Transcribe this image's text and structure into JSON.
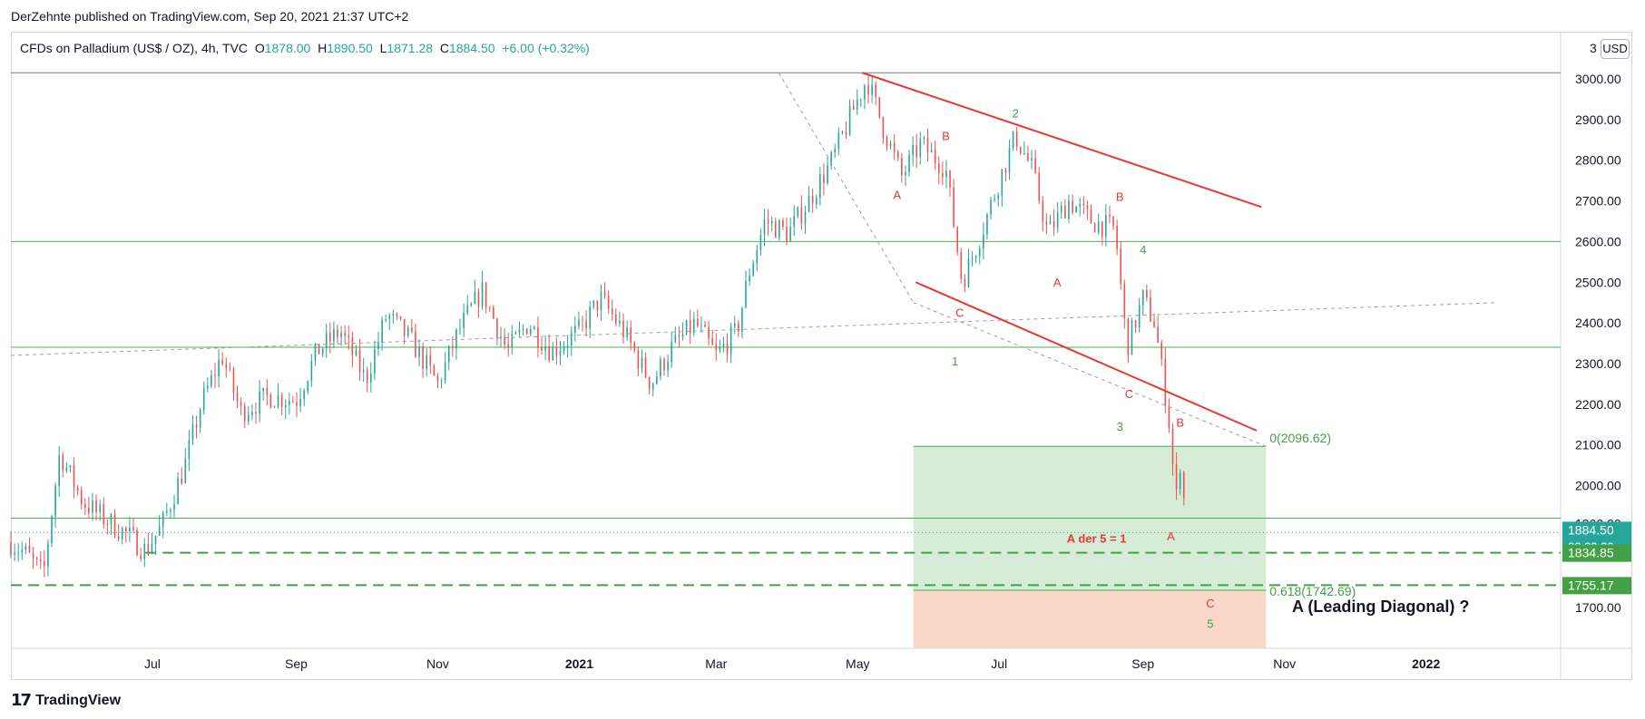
{
  "header": {
    "published_line": "DerZehnte published on TradingView.com, Sep 20, 2021 21:37 UTC+2"
  },
  "legend": {
    "symbol": "CFDs on Palladium (US$ / OZ), 4h, TVC",
    "o_label": "O",
    "o_value": "1878.00",
    "h_label": "H",
    "h_value": "1890.50",
    "l_label": "L",
    "l_value": "1871.28",
    "c_label": "C",
    "c_value": "1884.50",
    "change": "+6.00 (+0.32%)"
  },
  "toolbar": {
    "currency_prefix": "3",
    "currency_button": "USD"
  },
  "footer": {
    "brand": "TradingView",
    "brand_mark": "17"
  },
  "chart_data": {
    "type": "candlestick",
    "symbol": "CFDs on Palladium (US$ / OZ)",
    "interval": "4h",
    "colors": {
      "up": "#26a69a",
      "down": "#ef5350",
      "wave_red": "#e53935",
      "wave_green": "#43a047",
      "level_line": "#4caf50"
    },
    "x_axis": {
      "tick_labels": [
        "Jul",
        "Sep",
        "Nov",
        "2021",
        "Mar",
        "May",
        "Jul",
        "Sep",
        "Nov",
        "2022"
      ],
      "bold_ticks": [
        "2021",
        "2022"
      ]
    },
    "y_axis": {
      "range": [
        1600,
        3020
      ],
      "tick_values": [
        1700,
        2000,
        2100,
        2200,
        2300,
        2400,
        2500,
        2600,
        2700,
        2800,
        2900,
        3000
      ],
      "tick_labels": [
        "1700.00",
        "2000.00",
        "2100.00",
        "2200.00",
        "2300.00",
        "2400.00",
        "2500.00",
        "2600.00",
        "2700.00",
        "2800.00",
        "2900.00",
        "3000.00"
      ],
      "partial_tick_label": "1900.00"
    },
    "price_path": [
      {
        "date": "2020-05-01",
        "close": 1860
      },
      {
        "date": "2020-05-08",
        "close": 1830
      },
      {
        "date": "2020-05-15",
        "close": 1780
      },
      {
        "date": "2020-05-22",
        "close": 2080
      },
      {
        "date": "2020-06-01",
        "close": 1960
      },
      {
        "date": "2020-06-10",
        "close": 1920
      },
      {
        "date": "2020-06-20",
        "close": 1880
      },
      {
        "date": "2020-06-28",
        "close": 1840
      },
      {
        "date": "2020-07-05",
        "close": 1900
      },
      {
        "date": "2020-07-15",
        "close": 2050
      },
      {
        "date": "2020-07-22",
        "close": 2200
      },
      {
        "date": "2020-07-31",
        "close": 2320
      },
      {
        "date": "2020-08-08",
        "close": 2180
      },
      {
        "date": "2020-08-20",
        "close": 2220
      },
      {
        "date": "2020-09-01",
        "close": 2210
      },
      {
        "date": "2020-09-10",
        "close": 2330
      },
      {
        "date": "2020-09-20",
        "close": 2380
      },
      {
        "date": "2020-10-01",
        "close": 2260
      },
      {
        "date": "2020-10-10",
        "close": 2420
      },
      {
        "date": "2020-10-20",
        "close": 2360
      },
      {
        "date": "2020-11-01",
        "close": 2250
      },
      {
        "date": "2020-11-10",
        "close": 2380
      },
      {
        "date": "2020-11-20",
        "close": 2480
      },
      {
        "date": "2020-12-01",
        "close": 2330
      },
      {
        "date": "2020-12-10",
        "close": 2400
      },
      {
        "date": "2020-12-20",
        "close": 2330
      },
      {
        "date": "2021-01-01",
        "close": 2380
      },
      {
        "date": "2021-01-10",
        "close": 2460
      },
      {
        "date": "2021-01-20",
        "close": 2380
      },
      {
        "date": "2021-02-01",
        "close": 2250
      },
      {
        "date": "2021-02-10",
        "close": 2340
      },
      {
        "date": "2021-02-20",
        "close": 2400
      },
      {
        "date": "2021-03-01",
        "close": 2320
      },
      {
        "date": "2021-03-10",
        "close": 2380
      },
      {
        "date": "2021-03-15",
        "close": 2520
      },
      {
        "date": "2021-03-22",
        "close": 2650
      },
      {
        "date": "2021-04-01",
        "close": 2620
      },
      {
        "date": "2021-04-10",
        "close": 2700
      },
      {
        "date": "2021-04-20",
        "close": 2800
      },
      {
        "date": "2021-05-01",
        "close": 2950
      },
      {
        "date": "2021-05-05",
        "close": 3000
      },
      {
        "date": "2021-05-12",
        "close": 2880
      },
      {
        "date": "2021-05-20",
        "close": 2760
      },
      {
        "date": "2021-05-28",
        "close": 2840
      },
      {
        "date": "2021-06-08",
        "close": 2780
      },
      {
        "date": "2021-06-15",
        "close": 2500
      },
      {
        "date": "2021-06-22",
        "close": 2600
      },
      {
        "date": "2021-07-01",
        "close": 2750
      },
      {
        "date": "2021-07-08",
        "close": 2860
      },
      {
        "date": "2021-07-15",
        "close": 2780
      },
      {
        "date": "2021-07-22",
        "close": 2620
      },
      {
        "date": "2021-07-31",
        "close": 2700
      },
      {
        "date": "2021-08-10",
        "close": 2650
      },
      {
        "date": "2021-08-20",
        "close": 2630
      },
      {
        "date": "2021-08-25",
        "close": 2340
      },
      {
        "date": "2021-09-01",
        "close": 2460
      },
      {
        "date": "2021-09-06",
        "close": 2400
      },
      {
        "date": "2021-09-10",
        "close": 2250
      },
      {
        "date": "2021-09-13",
        "close": 2120
      },
      {
        "date": "2021-09-15",
        "close": 1950
      },
      {
        "date": "2021-09-17",
        "close": 2060
      },
      {
        "date": "2021-09-20",
        "close": 1884.5
      }
    ],
    "horizontal_levels": [
      {
        "price": 3015,
        "style": "solid",
        "color": "#787b86"
      },
      {
        "price": 2600,
        "style": "solid",
        "color": "#4caf50"
      },
      {
        "price": 2340,
        "style": "solid",
        "color": "#4caf50"
      },
      {
        "price": 1920,
        "style": "solid",
        "color": "#4caf50"
      },
      {
        "price": 1834.85,
        "style": "dashed",
        "color": "#43a047"
      },
      {
        "price": 1755.17,
        "style": "dashed",
        "color": "#43a047"
      }
    ],
    "trendlines": [
      {
        "start": [
          "2021-05-03",
          3015
        ],
        "end": [
          "2021-10-22",
          2685
        ],
        "color": "#e53935",
        "style": "solid"
      },
      {
        "start": [
          "2021-05-26",
          2500
        ],
        "end": [
          "2021-10-20",
          2135
        ],
        "color": "#e53935",
        "style": "solid"
      },
      {
        "start": [
          "2021-03-28",
          3015
        ],
        "end": [
          "2021-05-25",
          2450
        ],
        "color": "#9e9e9e",
        "style": "dashed"
      },
      {
        "start": [
          "2021-05-25",
          2450
        ],
        "end": [
          "2021-10-24",
          2096.62
        ],
        "color": "#9e9e9e",
        "style": "dashed"
      },
      {
        "start": [
          "2020-05-01",
          2320
        ],
        "end": [
          "2022-02-01",
          2450
        ],
        "color": "#9e9e9e",
        "style": "dashed"
      }
    ],
    "fib_box": {
      "x_start": "2021-05-25",
      "x_end": "2021-10-24",
      "level_0": 2096.62,
      "level_0_label": "0(2096.62)",
      "level_618": 1742.69,
      "level_618_label": "0.618(1742.69)",
      "target_color": "#c8e6c9",
      "stop_color": "#f8d4c4",
      "stop_bottom": 1600
    },
    "wave_labels": [
      {
        "text": "A",
        "date": "2021-05-18",
        "price": 2705,
        "color": "#e53935"
      },
      {
        "text": "B",
        "date": "2021-06-08",
        "price": 2850,
        "color": "#e53935"
      },
      {
        "text": "C",
        "date": "2021-06-14",
        "price": 2415,
        "color": "#e53935"
      },
      {
        "text": "2",
        "date": "2021-07-08",
        "price": 2905,
        "color": "#43a047"
      },
      {
        "text": "A",
        "date": "2021-07-26",
        "price": 2490,
        "color": "#e53935"
      },
      {
        "text": "B",
        "date": "2021-08-22",
        "price": 2700,
        "color": "#e53935"
      },
      {
        "text": "4",
        "date": "2021-09-01",
        "price": 2570,
        "color": "#43a047"
      },
      {
        "text": "C",
        "date": "2021-08-26",
        "price": 2215,
        "color": "#e53935"
      },
      {
        "text": "1",
        "date": "2021-06-12",
        "price": 2295,
        "color": "#43a047"
      },
      {
        "text": "3",
        "date": "2021-08-22",
        "price": 2135,
        "color": "#43a047"
      },
      {
        "text": "B",
        "date": "2021-09-17",
        "price": 2145,
        "color": "#e53935"
      },
      {
        "text": "A der 5 = 1",
        "date": "2021-08-12",
        "price": 1860,
        "color": "#e53935"
      },
      {
        "text": "A",
        "date": "2021-09-13",
        "price": 1865,
        "color": "#e53935"
      },
      {
        "text": "C",
        "date": "2021-09-30",
        "price": 1700,
        "color": "#e53935"
      },
      {
        "text": "5",
        "date": "2021-09-30",
        "price": 1650,
        "color": "#43a047"
      }
    ],
    "annotation": "A (Leading Diagonal) ?",
    "price_tags": [
      {
        "value": "1884.50",
        "sub": "02:22:23",
        "price": 1884.5
      },
      {
        "value": "1834.85",
        "price": 1834.85
      },
      {
        "value": "1755.17",
        "price": 1755.17
      }
    ]
  }
}
